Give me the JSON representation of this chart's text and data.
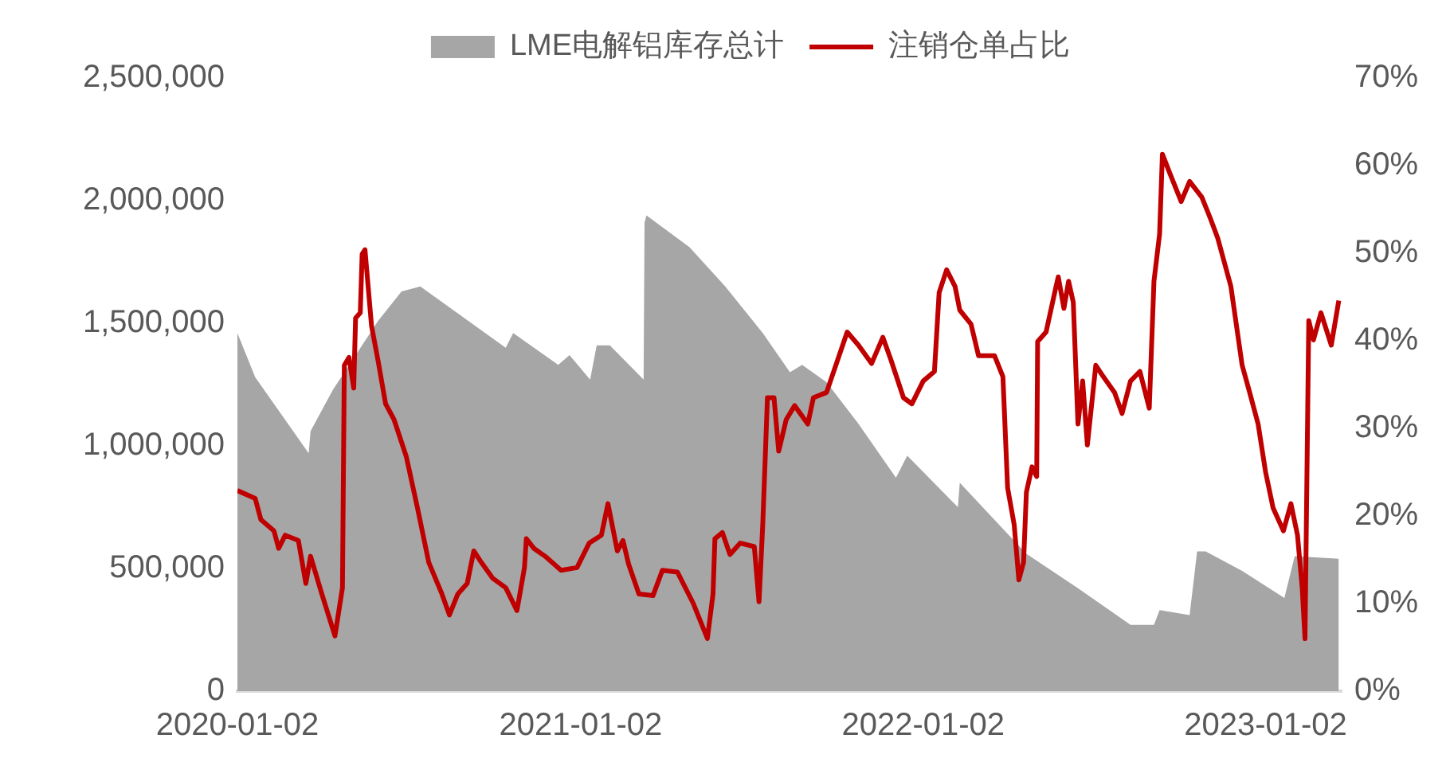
{
  "chart_data": {
    "type": "area",
    "legend": "top",
    "xlim": [
      "2020-01-02",
      "2023-03-24"
    ],
    "xticks": [
      "2020-01-02",
      "2021-01-02",
      "2022-01-02",
      "2023-01-02"
    ],
    "ylim": [
      0,
      2500000
    ],
    "yticks": [
      {
        "value": 0,
        "label": "0"
      },
      {
        "value": 500000,
        "label": "500,000"
      },
      {
        "value": 1000000,
        "label": "1,000,000"
      },
      {
        "value": 1500000,
        "label": "1,500,000"
      },
      {
        "value": 2000000,
        "label": "2,000,000"
      },
      {
        "value": 2500000,
        "label": "2,500,000"
      }
    ],
    "y2lim": [
      0,
      70
    ],
    "y2ticks": [
      {
        "value": 0,
        "label": "0%"
      },
      {
        "value": 10,
        "label": "10%"
      },
      {
        "value": 20,
        "label": "20%"
      },
      {
        "value": 30,
        "label": "30%"
      },
      {
        "value": 40,
        "label": "40%"
      },
      {
        "value": 50,
        "label": "50%"
      },
      {
        "value": 60,
        "label": "60%"
      },
      {
        "value": 70,
        "label": "70%"
      }
    ],
    "series": [
      {
        "name": "LME电解铝库存总计",
        "color": "#a6a6a6",
        "x": [
          "2020-01-02",
          "2020-01-21",
          "2020-03-18",
          "2020-03-20",
          "2020-04-13",
          "2020-05-31",
          "2020-06-25",
          "2020-07-15",
          "2020-10-14",
          "2020-10-22",
          "2020-12-09",
          "2020-12-21",
          "2021-01-12",
          "2021-01-19",
          "2021-02-02",
          "2021-03-10",
          "2021-03-11",
          "2021-03-13",
          "2021-04-28",
          "2021-06-05",
          "2021-07-15",
          "2021-08-13",
          "2021-08-26",
          "2021-09-21",
          "2021-10-25",
          "2021-12-04",
          "2021-12-16",
          "2022-02-08",
          "2022-02-10",
          "2022-04-22",
          "2022-06-16",
          "2022-08-11",
          "2022-09-05",
          "2022-09-11",
          "2022-10-13",
          "2022-10-21",
          "2022-10-30",
          "2022-12-08",
          "2023-01-22",
          "2023-02-02",
          "2023-03-21"
        ],
        "values": [
          1460000,
          1280000,
          970000,
          1060000,
          1230000,
          1510000,
          1630000,
          1650000,
          1400000,
          1460000,
          1330000,
          1370000,
          1270000,
          1410000,
          1410000,
          1270000,
          1910000,
          1940000,
          1810000,
          1650000,
          1460000,
          1300000,
          1330000,
          1260000,
          1090000,
          870000,
          960000,
          750000,
          850000,
          560000,
          420000,
          270000,
          270000,
          330000,
          310000,
          570000,
          570000,
          490000,
          380000,
          550000,
          540000
        ]
      },
      {
        "name": "注销仓单占比",
        "type": "line",
        "axis": "y2",
        "color": "#c00000",
        "x": [
          "2020-01-02",
          "2020-01-21",
          "2020-01-27",
          "2020-02-10",
          "2020-02-15",
          "2020-02-22",
          "2020-03-07",
          "2020-03-15",
          "2020-03-20",
          "2020-04-01",
          "2020-04-15",
          "2020-04-23",
          "2020-04-25",
          "2020-04-30",
          "2020-05-05",
          "2020-05-07",
          "2020-05-12",
          "2020-05-14",
          "2020-05-17",
          "2020-05-24",
          "2020-05-31",
          "2020-06-08",
          "2020-06-17",
          "2020-06-30",
          "2020-07-12",
          "2020-07-24",
          "2020-08-07",
          "2020-08-15",
          "2020-08-24",
          "2020-09-03",
          "2020-09-10",
          "2020-09-18",
          "2020-09-30",
          "2020-10-14",
          "2020-10-26",
          "2020-11-03",
          "2020-11-05",
          "2020-11-13",
          "2020-11-25",
          "2020-12-12",
          "2020-12-29",
          "2021-01-11",
          "2021-01-24",
          "2021-01-31",
          "2021-02-10",
          "2021-02-16",
          "2021-02-22",
          "2021-03-05",
          "2021-03-20",
          "2021-03-30",
          "2021-04-15",
          "2021-05-02",
          "2021-05-17",
          "2021-05-23",
          "2021-05-25",
          "2021-06-02",
          "2021-06-10",
          "2021-06-21",
          "2021-07-06",
          "2021-07-11",
          "2021-07-15",
          "2021-07-20",
          "2021-07-27",
          "2021-08-01",
          "2021-08-09",
          "2021-08-18",
          "2021-09-01",
          "2021-09-07",
          "2021-09-21",
          "2021-10-13",
          "2021-10-25",
          "2021-11-08",
          "2021-11-20",
          "2021-11-29",
          "2021-12-12",
          "2021-12-21",
          "2022-01-02",
          "2022-01-14",
          "2022-01-19",
          "2022-01-27",
          "2022-02-05",
          "2022-02-10",
          "2022-02-22",
          "2022-03-02",
          "2022-03-19",
          "2022-03-28",
          "2022-04-02",
          "2022-04-09",
          "2022-04-14",
          "2022-04-19",
          "2022-04-22",
          "2022-04-28",
          "2022-05-03",
          "2022-05-04",
          "2022-05-13",
          "2022-05-23",
          "2022-05-26",
          "2022-06-01",
          "2022-06-06",
          "2022-06-11",
          "2022-06-16",
          "2022-06-21",
          "2022-06-26",
          "2022-07-05",
          "2022-07-13",
          "2022-07-25",
          "2022-08-02",
          "2022-08-11",
          "2022-08-21",
          "2022-08-31",
          "2022-09-05",
          "2022-09-11",
          "2022-09-14",
          "2022-09-22",
          "2022-10-04",
          "2022-10-13",
          "2022-10-26",
          "2022-11-04",
          "2022-11-12",
          "2022-11-26",
          "2022-12-08",
          "2022-12-16",
          "2022-12-25",
          "2023-01-02",
          "2023-01-10",
          "2023-01-21",
          "2023-01-29",
          "2023-02-05",
          "2023-02-10",
          "2023-02-13",
          "2023-02-17",
          "2023-02-22",
          "2023-03-02",
          "2023-03-13",
          "2023-03-21"
        ],
        "values": [
          22.9,
          22,
          19.6,
          18.3,
          16.3,
          17.8,
          17.2,
          12.3,
          15.4,
          11.1,
          6.3,
          11.8,
          37.2,
          38.1,
          34.6,
          42.6,
          43.2,
          49.9,
          50.4,
          41.7,
          37.7,
          32.8,
          31,
          26.8,
          20.9,
          14.7,
          11.1,
          8.7,
          11.1,
          12.3,
          16,
          14.7,
          12.9,
          11.8,
          9.2,
          14.1,
          17.4,
          16.3,
          15.4,
          13.8,
          14.1,
          16.9,
          17.8,
          21.4,
          16,
          17.2,
          14.5,
          11.1,
          10.9,
          13.8,
          13.6,
          10,
          6,
          11.1,
          17.4,
          18.1,
          15.6,
          16.9,
          16.5,
          10.2,
          19,
          33.5,
          33.5,
          27.4,
          31,
          32.6,
          30.5,
          33.5,
          34.1,
          41,
          39.5,
          37.4,
          40.4,
          37.7,
          33.5,
          32.8,
          35.4,
          36.5,
          45.5,
          48.1,
          46.2,
          43.5,
          41.9,
          38.3,
          38.3,
          35.9,
          23.2,
          19,
          12.7,
          14.7,
          22.7,
          25.6,
          24.5,
          39.9,
          41,
          45.9,
          47.3,
          43.7,
          46.8,
          44.4,
          30.5,
          35.4,
          28.1,
          37.2,
          35.9,
          34.1,
          31.7,
          35.4,
          36.5,
          32.3,
          46.8,
          52.2,
          61.3,
          59.1,
          55.9,
          58.2,
          56.4,
          54,
          51.7,
          46.2,
          37.2,
          34.1,
          30.5,
          25,
          20.9,
          18.3,
          21.4,
          17.8,
          11.8,
          6,
          42.3,
          40.1,
          43.2,
          39.5,
          44.6
        ]
      }
    ]
  }
}
